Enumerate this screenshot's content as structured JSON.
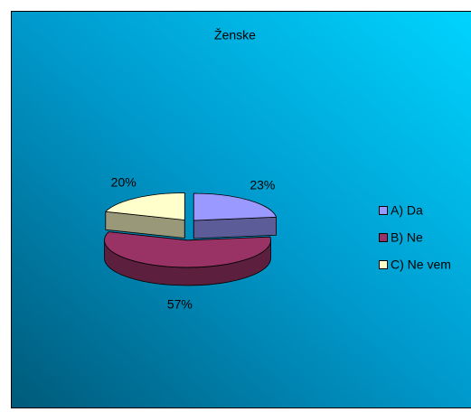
{
  "chart_data": {
    "type": "pie3d",
    "title": "Ženske",
    "categories": [
      "A) Da",
      "B) Ne",
      "C) Ne vem"
    ],
    "values": [
      23,
      57,
      20
    ],
    "value_labels": [
      "23%",
      "57%",
      "20%"
    ],
    "colors": [
      "#9999ff",
      "#993366",
      "#ffffcc"
    ],
    "legend": "right"
  }
}
